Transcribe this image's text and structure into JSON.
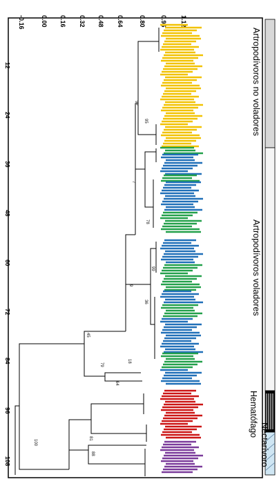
{
  "axis": {
    "top_ticks": [
      "-0.16",
      "0.00",
      "0.16",
      "0.32",
      "0.48",
      "0.64",
      "0.80",
      "0.96",
      "1.12"
    ],
    "left_ticks": [
      "12",
      "24",
      "36",
      "48",
      "60",
      "72",
      "84",
      "96",
      "108"
    ]
  },
  "node_labels": [
    "100",
    "81",
    "88",
    "45",
    "79",
    "64",
    "18",
    "9",
    "7",
    "36",
    "92",
    "95",
    "99",
    "78"
  ],
  "legend": {
    "groups": [
      {
        "key": "no_voladores",
        "label": "Artropodívoros no voladores"
      },
      {
        "key": "voladores",
        "label": "Artropodívoros voladores"
      },
      {
        "key": "hematofago",
        "label": "Hematófago"
      },
      {
        "key": "nectarivoro",
        "label": "Nectarívoro"
      }
    ]
  },
  "colors": {
    "no_voladores": "#f2c200",
    "voladores_blue": "#1f6fb8",
    "voladores_green": "#22a04a",
    "hematofago": "#cc1414",
    "nectarivoro": "#7a3a9a",
    "tree": "#000000"
  }
}
